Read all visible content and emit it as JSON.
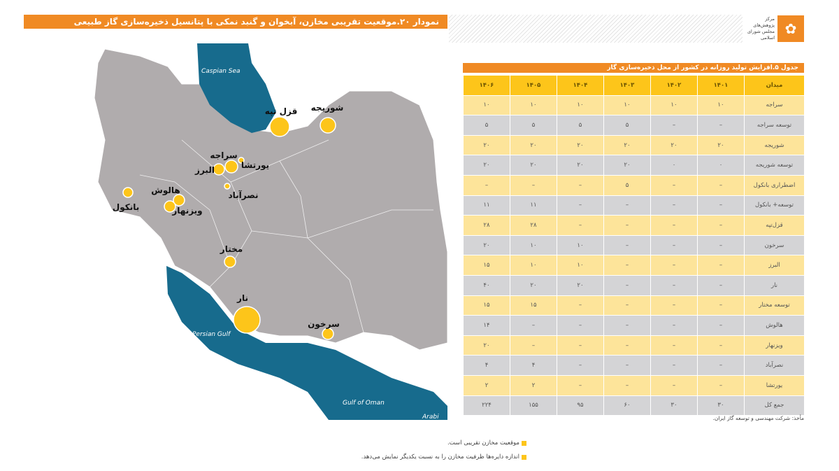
{
  "title": "نمودار ۲۰.موقعیت تقریبی مخازن، آبخوان و گنبد نمکی با پتانسیل ذخیره‌سازی گاز طبیعی",
  "logo": {
    "line1": "مرکز پژوهش‌های",
    "line2": "مجلس شورای اسلامی"
  },
  "map": {
    "seas": {
      "caspian": "Caspian Sea",
      "persian_gulf": "Persian Gulf",
      "oman": "Gulf of Oman",
      "arabian": "Arabi"
    },
    "marker_color": "#fdc51a",
    "land_color": "#b0acad",
    "sea_color": "#176b8d",
    "sites": [
      {
        "name": "قزل تپه"
      },
      {
        "name": "شوریجه"
      },
      {
        "name": "سراجه"
      },
      {
        "name": "یورتشا"
      },
      {
        "name": "البرز"
      },
      {
        "name": "نصرآباد"
      },
      {
        "name": "بانکول"
      },
      {
        "name": "هالوش"
      },
      {
        "name": "ویزنهار"
      },
      {
        "name": "مختار"
      },
      {
        "name": "نار"
      },
      {
        "name": "سرخون"
      }
    ]
  },
  "table": {
    "title": "جدول ۵.افزایش تولید روزانه در کشور از محل ذخیره‌سازی گاز",
    "headers": [
      "میدان",
      "۱۴۰۱",
      "۱۴۰۲",
      "۱۴۰۳",
      "۱۴۰۴",
      "۱۴۰۵",
      "۱۴۰۶"
    ],
    "rows": [
      [
        "سراجه",
        "۱۰",
        "۱۰",
        "۱۰",
        "۱۰",
        "۱۰",
        "۱۰"
      ],
      [
        "توسعه سراجه",
        "–",
        "–",
        "۵",
        "۵",
        "۵",
        "۵"
      ],
      [
        "شوریجه",
        "۲۰",
        "۲۰",
        "۲۰",
        "۲۰",
        "۲۰",
        "۲۰"
      ],
      [
        "توسعه شوریجه",
        "۰",
        "۰",
        "۲۰",
        "۲۰",
        "۲۰",
        "۲۰"
      ],
      [
        "اضطراری بانکول",
        "–",
        "–",
        "۵",
        "–",
        "–",
        "–"
      ],
      [
        "توسعه+ بانکول",
        "–",
        "–",
        "–",
        "–",
        "۱۱",
        "۱۱"
      ],
      [
        "قزل‌تپه",
        "–",
        "–",
        "–",
        "–",
        "۲۸",
        "۲۸"
      ],
      [
        "سرخون",
        "–",
        "–",
        "–",
        "۱۰",
        "۱۰",
        "۲۰"
      ],
      [
        "البرز",
        "–",
        "–",
        "–",
        "۱۰",
        "۱۰",
        "۱۵"
      ],
      [
        "نار",
        "–",
        "–",
        "–",
        "۲۰",
        "۲۰",
        "۴۰"
      ],
      [
        "توسعه مختار",
        "–",
        "–",
        "–",
        "–",
        "۱۵",
        "۱۵"
      ],
      [
        "هالوش",
        "–",
        "–",
        "–",
        "–",
        "–",
        "۱۴"
      ],
      [
        "ویزنهار",
        "–",
        "–",
        "–",
        "–",
        "–",
        "۲۰"
      ],
      [
        "نصرآباد",
        "–",
        "–",
        "–",
        "–",
        "۴",
        "۴"
      ],
      [
        "یورتشا",
        "–",
        "–",
        "–",
        "–",
        "۲",
        "۲"
      ],
      [
        "جمع کل",
        "۳۰",
        "۳۰",
        "۶۰",
        "۹۵",
        "۱۵۵",
        "۲۲۴"
      ]
    ],
    "source": "مأخذ: شرکت مهندسی و توسعه گاز ایران."
  },
  "notes": [
    "موقعیت مخازن تقریبی است.",
    "اندازه دایره‌ها ظرفیت مخازن را به نسبت یکدیگر نمایش می‌دهد."
  ]
}
